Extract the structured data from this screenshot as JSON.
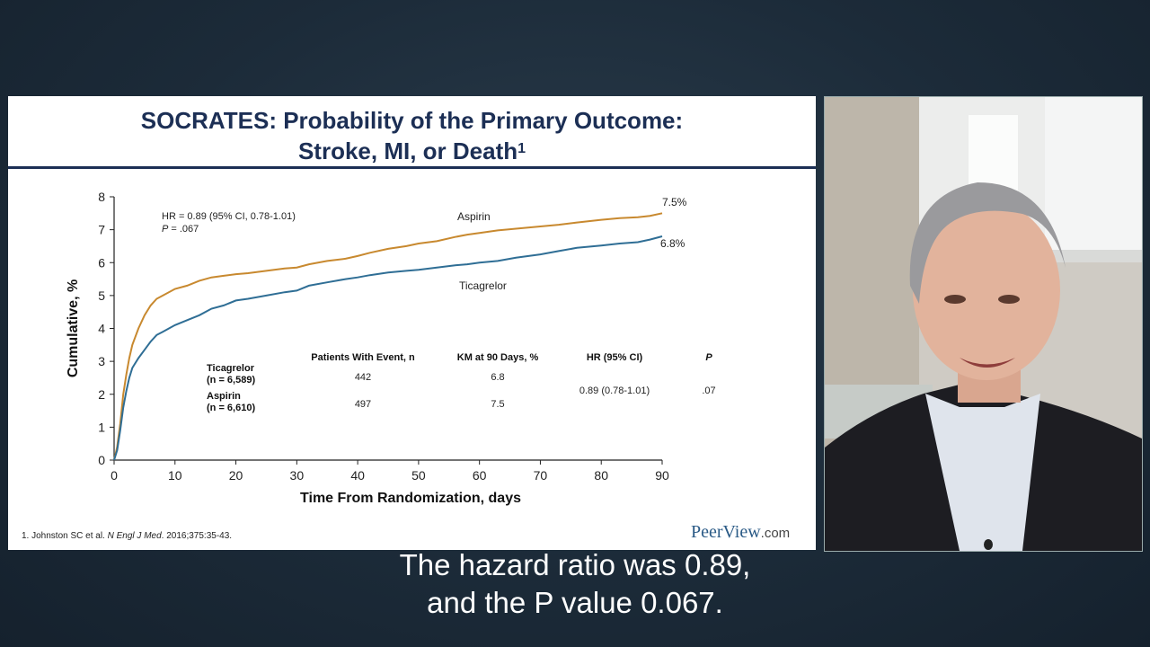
{
  "slide": {
    "title_line1": "SOCRATES: Probability of the Primary Outcome:",
    "title_line2": "Stroke, MI, or Death",
    "title_sup": "1",
    "footnote_pre": "1. Johnston SC et al. ",
    "footnote_journal": "N Engl J Med",
    "footnote_post": ". 2016;375:35-43.",
    "brand_name": "PeerView",
    "brand_domain": ".com"
  },
  "chart_data": {
    "type": "line",
    "title": "",
    "xlabel": "Time From Randomization, days",
    "ylabel": "Cumulative, %",
    "xlim": [
      0,
      90
    ],
    "ylim": [
      0,
      8
    ],
    "xticks": [
      0,
      10,
      20,
      30,
      40,
      50,
      60,
      70,
      80,
      90
    ],
    "yticks": [
      0,
      1,
      2,
      3,
      4,
      5,
      6,
      7,
      8
    ],
    "grid": false,
    "annotation_hr": "HR = 0.89 (95% CI, 0.78-1.01)",
    "annotation_p_label": "P",
    "annotation_p_value": " = .067",
    "series": [
      {
        "name": "Aspirin",
        "color": "#c8892f",
        "end_label": "7.5%",
        "x": [
          0,
          0.5,
          1,
          1.5,
          2,
          2.5,
          3,
          4,
          5,
          6,
          7,
          8,
          10,
          12,
          14,
          16,
          18,
          20,
          22,
          25,
          28,
          30,
          32,
          35,
          38,
          40,
          42,
          45,
          48,
          50,
          53,
          56,
          58,
          60,
          63,
          66,
          70,
          73,
          76,
          80,
          83,
          86,
          88,
          90
        ],
        "values": [
          0,
          0.4,
          1.1,
          2.0,
          2.6,
          3.1,
          3.5,
          4.0,
          4.4,
          4.7,
          4.9,
          5.0,
          5.2,
          5.3,
          5.45,
          5.55,
          5.6,
          5.65,
          5.68,
          5.75,
          5.82,
          5.85,
          5.95,
          6.05,
          6.12,
          6.2,
          6.3,
          6.42,
          6.5,
          6.58,
          6.65,
          6.78,
          6.85,
          6.9,
          6.98,
          7.03,
          7.1,
          7.15,
          7.22,
          7.3,
          7.35,
          7.38,
          7.42,
          7.5
        ]
      },
      {
        "name": "Ticagrelor",
        "color": "#2f6e95",
        "end_label": "6.8%",
        "x": [
          0,
          0.5,
          1,
          1.5,
          2,
          2.5,
          3,
          4,
          5,
          6,
          7,
          8,
          10,
          12,
          14,
          16,
          18,
          20,
          22,
          25,
          28,
          30,
          32,
          35,
          38,
          40,
          42,
          45,
          48,
          50,
          53,
          56,
          58,
          60,
          63,
          66,
          70,
          73,
          76,
          80,
          83,
          86,
          88,
          90
        ],
        "values": [
          0,
          0.3,
          0.9,
          1.6,
          2.1,
          2.5,
          2.8,
          3.1,
          3.35,
          3.6,
          3.8,
          3.9,
          4.1,
          4.25,
          4.4,
          4.6,
          4.7,
          4.85,
          4.9,
          5.0,
          5.1,
          5.15,
          5.3,
          5.4,
          5.5,
          5.55,
          5.62,
          5.7,
          5.75,
          5.78,
          5.85,
          5.92,
          5.95,
          6.0,
          6.05,
          6.15,
          6.25,
          6.35,
          6.45,
          6.52,
          6.58,
          6.62,
          6.7,
          6.8
        ]
      }
    ],
    "table": {
      "headers": [
        "Patients With Event, n",
        "KM at 90 Days, %",
        "HR (95% CI)",
        "P"
      ],
      "rows": [
        {
          "group": "Ticagrelor",
          "n": "(n = 6,589)",
          "events": "442",
          "km": "6.8"
        },
        {
          "group": "Aspirin",
          "n": "(n = 6,610)",
          "events": "497",
          "km": "7.5"
        }
      ],
      "hr": "0.89 (0.78-1.01)",
      "p": ".07"
    }
  },
  "captions": {
    "line1": "The hazard ratio was 0.89,",
    "line2": "and the P value 0.067."
  }
}
